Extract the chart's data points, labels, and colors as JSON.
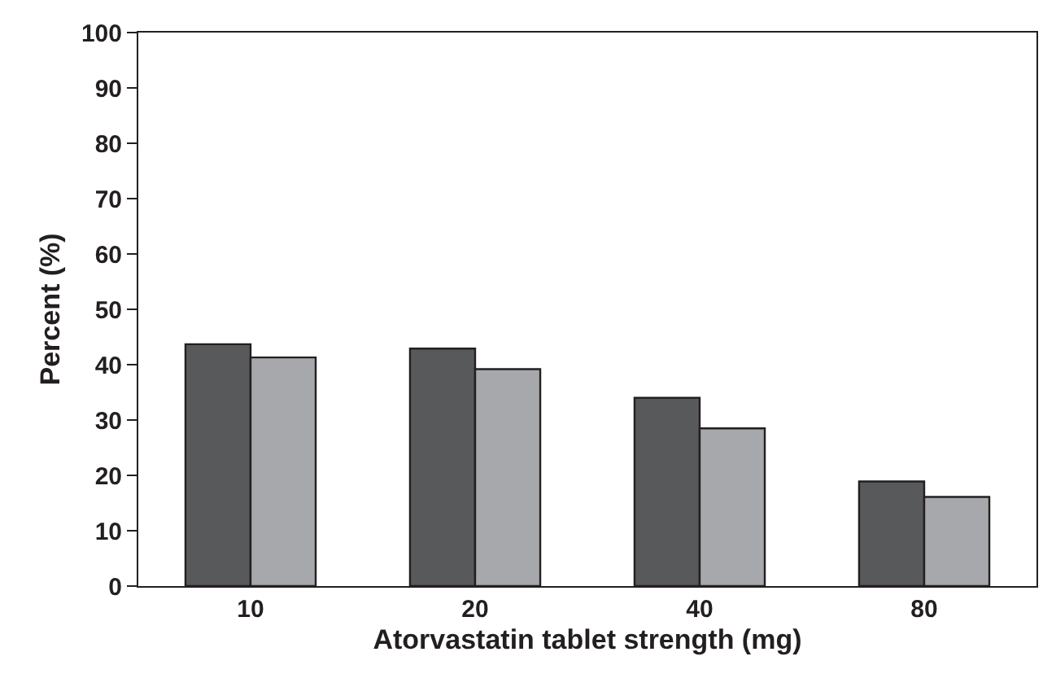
{
  "chart_data": {
    "type": "bar",
    "xlabel": "Atorvastatin tablet strength (mg)",
    "ylabel": "Percent (%)",
    "categories": [
      "10",
      "20",
      "40",
      "80"
    ],
    "series": [
      {
        "color": "#58595b",
        "values": [
          43.7,
          42.9,
          34.0,
          18.9
        ]
      },
      {
        "color": "#a7a8ab",
        "values": [
          41.3,
          39.2,
          28.5,
          16.1
        ]
      }
    ],
    "ylim": [
      0,
      100
    ],
    "yticks": [
      0,
      10,
      20,
      30,
      40,
      50,
      60,
      70,
      80,
      90,
      100
    ]
  }
}
